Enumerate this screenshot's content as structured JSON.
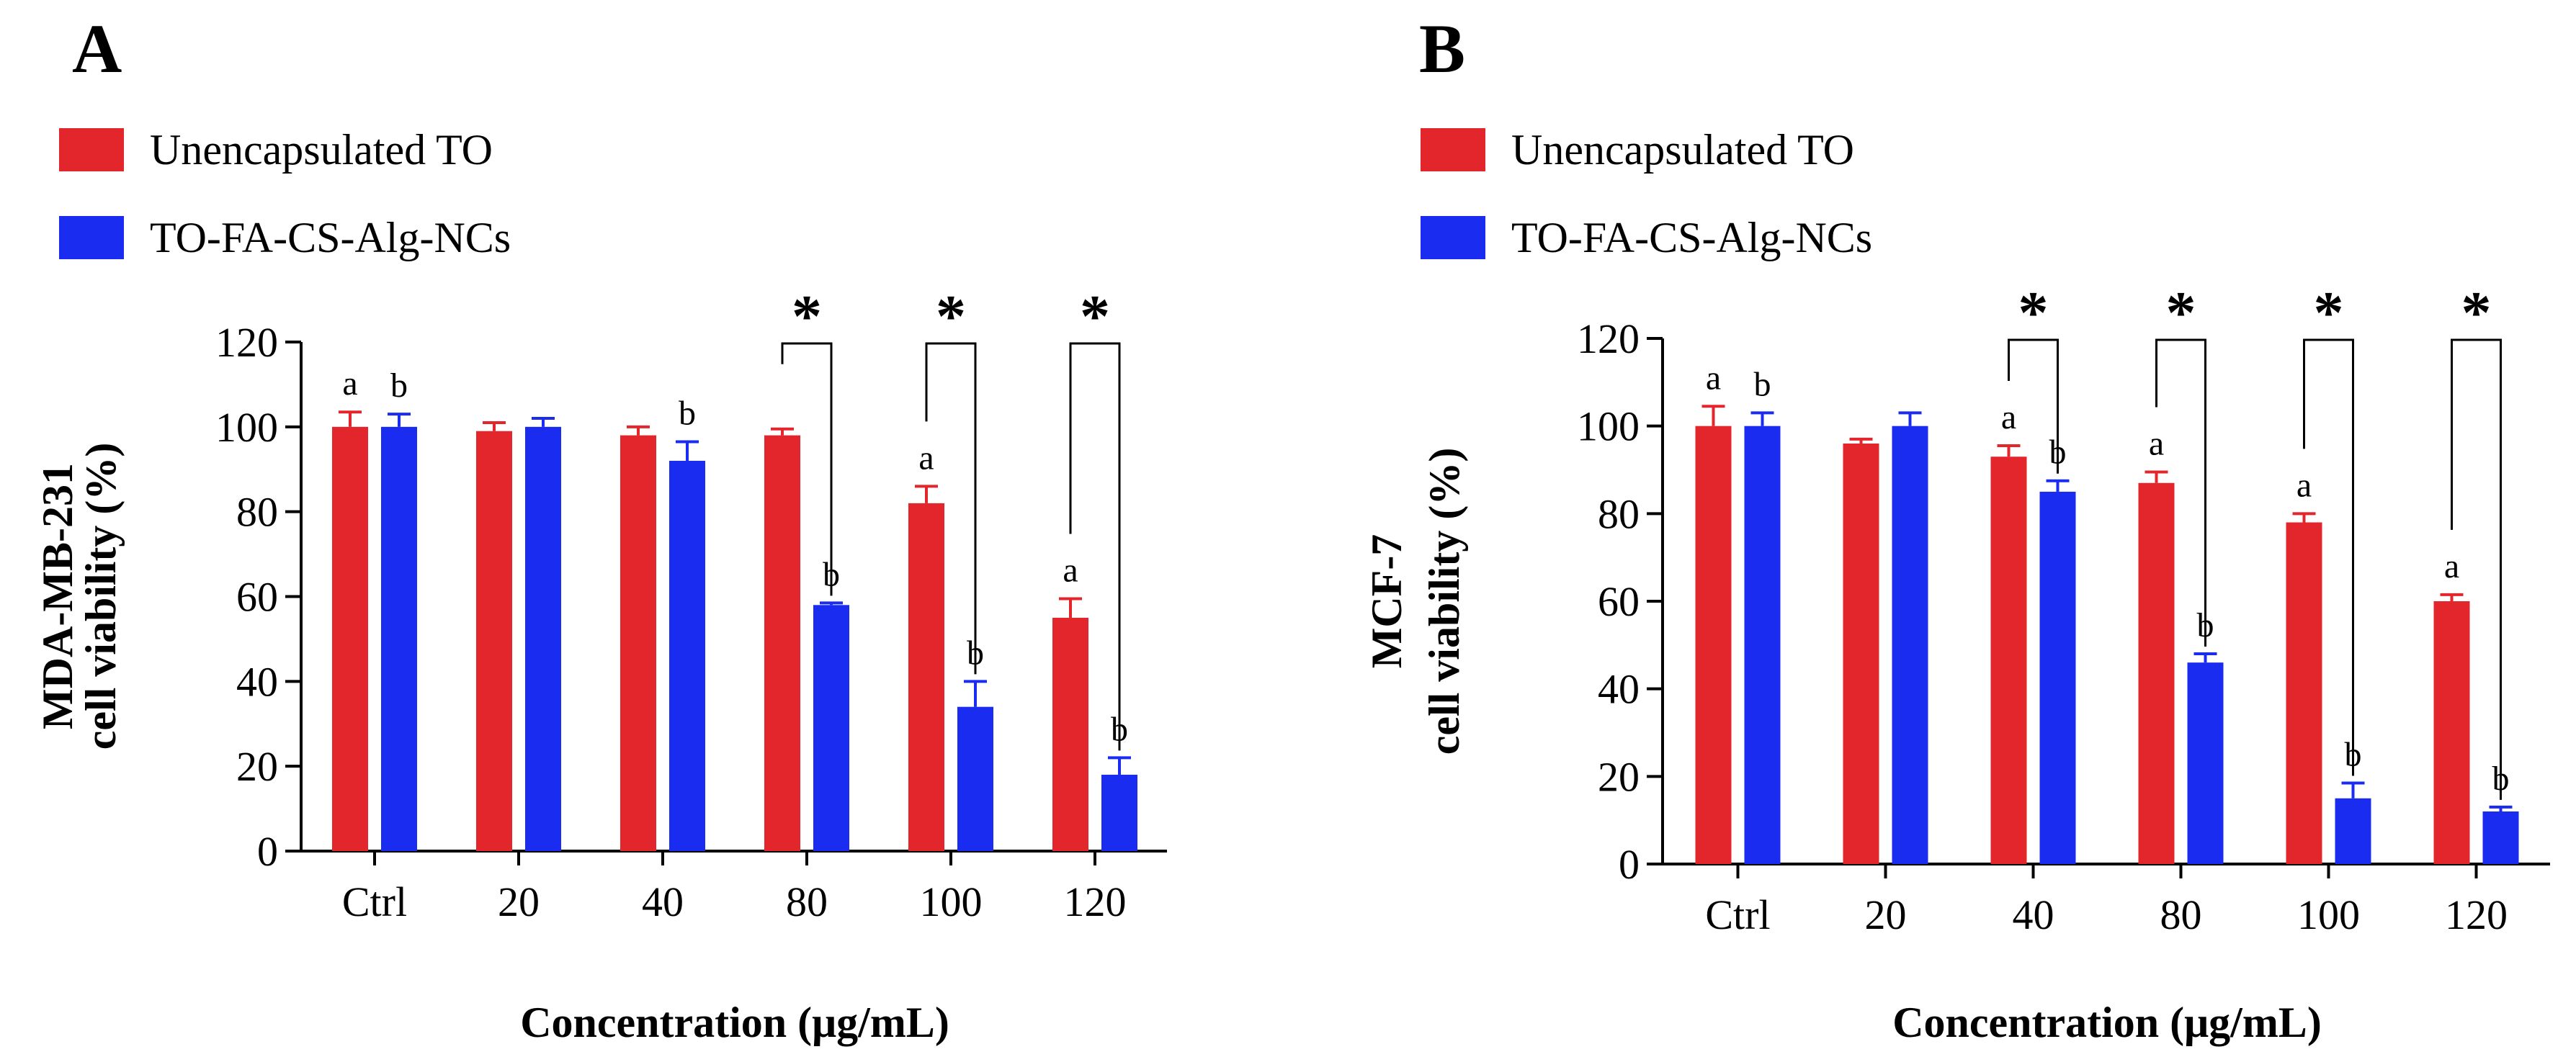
{
  "colors": {
    "series_1": "#e3262b",
    "series_2": "#1a2cf0",
    "axis": "#000000"
  },
  "chart_data": [
    {
      "type": "bar",
      "panel": "A",
      "title": "",
      "xlabel": "Concentration (μg/mL)",
      "ylabel_lines": [
        "MDA-MB-231",
        "cell viability (%)"
      ],
      "categories": [
        "Ctrl",
        "20",
        "40",
        "80",
        "100",
        "120"
      ],
      "ylim": [
        0,
        120
      ],
      "yticks": [
        0,
        20,
        40,
        60,
        80,
        100,
        120
      ],
      "legend_position": "top-left",
      "series": [
        {
          "name": "Unencapsulated TO",
          "values": [
            100,
            99,
            98,
            98,
            82,
            55
          ],
          "errors": [
            3.5,
            2,
            2,
            1.5,
            4,
            4.5
          ],
          "labels": [
            "a",
            "",
            "",
            "",
            "a",
            "a"
          ]
        },
        {
          "name": "TO-FA-CS-Alg-NCs",
          "values": [
            100,
            100,
            92,
            58,
            34,
            18
          ],
          "errors": [
            3,
            2,
            4.5,
            0.5,
            6,
            4
          ],
          "labels": [
            "b",
            "",
            "b",
            "b",
            "b",
            "b"
          ]
        }
      ],
      "significance": [
        {
          "category": "80",
          "mark": "*"
        },
        {
          "category": "100",
          "mark": "*"
        },
        {
          "category": "120",
          "mark": "*"
        }
      ]
    },
    {
      "type": "bar",
      "panel": "B",
      "title": "",
      "xlabel": "Concentration (μg/mL)",
      "ylabel_lines": [
        "MCF-7",
        "cell viability (%)"
      ],
      "categories": [
        "Ctrl",
        "20",
        "40",
        "80",
        "100",
        "120"
      ],
      "ylim": [
        0,
        120
      ],
      "yticks": [
        0,
        20,
        40,
        60,
        80,
        100,
        120
      ],
      "legend_position": "top-left",
      "series": [
        {
          "name": "Unencapsulated TO",
          "values": [
            100,
            96,
            93,
            87,
            78,
            60
          ],
          "errors": [
            4.5,
            1,
            2.5,
            2.5,
            2,
            1.5
          ],
          "labels": [
            "a",
            "",
            "a",
            "a",
            "a",
            "a"
          ]
        },
        {
          "name": "TO-FA-CS-Alg-NCs",
          "values": [
            100,
            100,
            85,
            46,
            15,
            12
          ],
          "errors": [
            3,
            3,
            2.5,
            2,
            3.5,
            1
          ],
          "labels": [
            "b",
            "",
            "b",
            "b",
            "b",
            "b"
          ]
        }
      ],
      "significance": [
        {
          "category": "40",
          "mark": "*"
        },
        {
          "category": "80",
          "mark": "*"
        },
        {
          "category": "100",
          "mark": "*"
        },
        {
          "category": "120",
          "mark": "*"
        }
      ]
    }
  ]
}
